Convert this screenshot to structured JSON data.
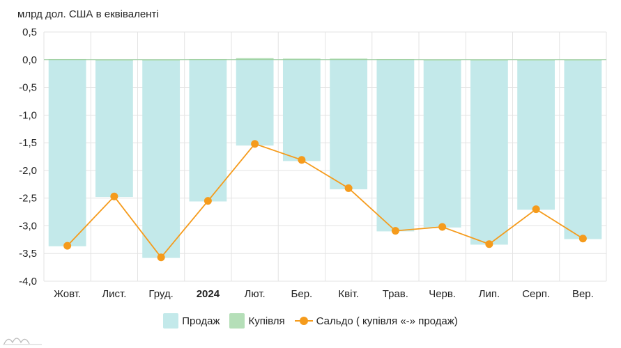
{
  "chart_data": {
    "type": "bar",
    "unit_label": "млрд дол. США в еквіваленті",
    "categories": [
      "Жовт.",
      "Лист.",
      "Груд.",
      "2024",
      "Лют.",
      "Бер.",
      "Квіт.",
      "Трав.",
      "Черв.",
      "Лип.",
      "Серп.",
      "Вер."
    ],
    "bold_categories": [
      "2024"
    ],
    "ylim": [
      -4.0,
      0.5
    ],
    "yticks": [
      0.5,
      0.0,
      -0.5,
      -1.0,
      -1.5,
      -2.0,
      -2.5,
      -3.0,
      -3.5,
      -4.0
    ],
    "ytick_labels": [
      "0,5",
      "0,0",
      "-0,5",
      "-1,0",
      "-1,5",
      "-2,0",
      "-2,5",
      "-3,0",
      "-3,5",
      "-4,0"
    ],
    "grid": true,
    "legend_position": "bottom",
    "series": [
      {
        "name": "Продаж",
        "kind": "bar",
        "color": "#c3e9ea",
        "values": [
          -3.37,
          -2.48,
          -3.58,
          -2.56,
          -1.55,
          -1.83,
          -2.34,
          -3.1,
          -3.03,
          -3.34,
          -2.71,
          -3.24
        ]
      },
      {
        "name": "Купівля",
        "kind": "bar",
        "color": "#b5dfb8",
        "values": [
          0.01,
          0.0,
          0.0,
          0.01,
          0.03,
          0.02,
          0.02,
          0.01,
          0.0,
          0.0,
          0.0,
          0.0
        ]
      },
      {
        "name": "Сальдо ( купівля «-» продаж)",
        "kind": "line",
        "color": "#f59b1c",
        "values": [
          -3.36,
          -2.47,
          -3.57,
          -2.55,
          -1.52,
          -1.81,
          -2.32,
          -3.09,
          -3.02,
          -3.33,
          -2.7,
          -3.23
        ]
      }
    ]
  }
}
